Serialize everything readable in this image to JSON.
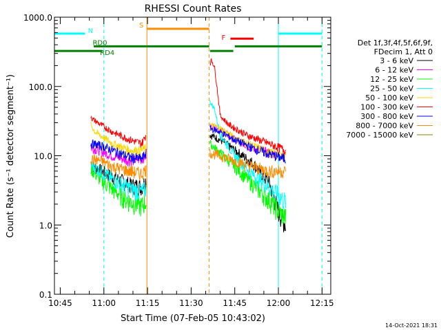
{
  "chart_data": {
    "type": "line",
    "title": "RHESSI Count Rates",
    "xlabel": "Start Time (07-Feb-05 10:43:02)",
    "ylabel": "Count Rate (s⁻¹ detector segment⁻¹)",
    "yscale": "log",
    "ylim": [
      0.1,
      1000
    ],
    "xlim_minutes": [
      0,
      95
    ],
    "x_ticks": [
      {
        "label": "10:45",
        "t": 2
      },
      {
        "label": "11:00",
        "t": 17
      },
      {
        "label": "11:15",
        "t": 32
      },
      {
        "label": "11:30",
        "t": 47
      },
      {
        "label": "11:45",
        "t": 62
      },
      {
        "label": "12:00",
        "t": 77
      },
      {
        "label": "12:15",
        "t": 92
      }
    ],
    "y_ticks": [
      {
        "label": "0.1",
        "v": 0.1
      },
      {
        "label": "1.0",
        "v": 1
      },
      {
        "label": "10.0",
        "v": 10
      },
      {
        "label": "100.0",
        "v": 100
      },
      {
        "label": "1000.0",
        "v": 1000
      }
    ],
    "legend_header": [
      "Det 1f,3f,4f,5f,6f,9f,",
      "FDecim 1, Att 0"
    ],
    "segments": [
      [
        12.5,
        31.5
      ],
      [
        53.5,
        79.5
      ]
    ],
    "series": [
      {
        "name": "3 - 6 keV",
        "color": "#000000",
        "p1": [
          [
            12.5,
            8
          ],
          [
            13.5,
            7
          ],
          [
            20,
            5
          ],
          [
            26,
            3.8
          ],
          [
            30,
            3.6
          ],
          [
            31.5,
            4.5
          ]
        ],
        "p2": [
          [
            53.5,
            20
          ],
          [
            57,
            17
          ],
          [
            62,
            12
          ],
          [
            68,
            8
          ],
          [
            74,
            4
          ],
          [
            77,
            1.6
          ],
          [
            79.5,
            1
          ]
        ]
      },
      {
        "name": "6 - 12 keV",
        "color": "#ff00ff",
        "p1": [
          [
            12.5,
            13
          ],
          [
            15,
            12
          ],
          [
            20,
            10
          ],
          [
            26,
            8.5
          ],
          [
            30,
            9
          ],
          [
            31.5,
            10
          ]
        ],
        "p2": [
          [
            53.5,
            27
          ],
          [
            57,
            24
          ],
          [
            62,
            17
          ],
          [
            68,
            13
          ],
          [
            74,
            11
          ],
          [
            79.5,
            10
          ]
        ]
      },
      {
        "name": "12 - 25 keV",
        "color": "#00ff00",
        "p1": [
          [
            12.5,
            6.5
          ],
          [
            16,
            4.5
          ],
          [
            20,
            3.3
          ],
          [
            26,
            2.2
          ],
          [
            30,
            1.9
          ],
          [
            31.5,
            2.2
          ]
        ],
        "p2": [
          [
            53.5,
            15
          ],
          [
            57,
            11
          ],
          [
            62,
            7
          ],
          [
            68,
            4
          ],
          [
            74,
            2.3
          ],
          [
            77,
            1.6
          ],
          [
            79.5,
            1.3
          ]
        ]
      },
      {
        "name": "25 - 50 keV",
        "color": "#00ffff",
        "p1": [
          [
            12.5,
            7.5
          ],
          [
            16,
            6
          ],
          [
            20,
            4.6
          ],
          [
            26,
            3.4
          ],
          [
            30,
            3.0
          ],
          [
            31.5,
            3.4
          ]
        ],
        "p2": [
          [
            53.5,
            60
          ],
          [
            55,
            48
          ],
          [
            57,
            20
          ],
          [
            62,
            10
          ],
          [
            68,
            5.5
          ],
          [
            74,
            3.5
          ],
          [
            79.5,
            2.2
          ]
        ]
      },
      {
        "name": "50 - 100 keV",
        "color": "#ffd700",
        "p1": [
          [
            12.5,
            28
          ],
          [
            14,
            22
          ],
          [
            20,
            15
          ],
          [
            26,
            12
          ],
          [
            30,
            12
          ],
          [
            31.5,
            13
          ]
        ],
        "p2": [
          [
            53.5,
            28
          ],
          [
            57,
            25
          ],
          [
            62,
            18
          ],
          [
            68,
            14
          ],
          [
            74,
            11
          ],
          [
            79.5,
            10
          ]
        ]
      },
      {
        "name": "100 - 300 keV",
        "color": "#ff0000",
        "p1": [
          [
            12.5,
            38
          ],
          [
            13,
            34
          ],
          [
            16,
            28
          ],
          [
            20,
            22
          ],
          [
            26,
            17
          ],
          [
            30,
            15
          ],
          [
            31.5,
            20
          ]
        ],
        "p2": [
          [
            53.5,
            215
          ],
          [
            54,
            240
          ],
          [
            55,
            195
          ],
          [
            56,
            90
          ],
          [
            57,
            38
          ],
          [
            60,
            28
          ],
          [
            66,
            20
          ],
          [
            72,
            16
          ],
          [
            79.5,
            12
          ]
        ]
      },
      {
        "name": "300 - 800 keV",
        "color": "#0000ff",
        "p1": [
          [
            12.5,
            15
          ],
          [
            16,
            14
          ],
          [
            20,
            12
          ],
          [
            26,
            9.5
          ],
          [
            30,
            9
          ],
          [
            31.5,
            11
          ]
        ],
        "p2": [
          [
            53.5,
            25
          ],
          [
            57,
            22
          ],
          [
            62,
            17
          ],
          [
            68,
            13
          ],
          [
            74,
            10.5
          ],
          [
            79.5,
            9
          ]
        ]
      },
      {
        "name": "800 - 7000 keV",
        "color": "#ff8c00",
        "p1": [
          [
            12.5,
            9
          ],
          [
            16,
            8.5
          ],
          [
            20,
            7
          ],
          [
            26,
            6
          ],
          [
            30,
            5.5
          ],
          [
            31.5,
            6.5
          ]
        ],
        "p2": [
          [
            53.5,
            11
          ],
          [
            57,
            10
          ],
          [
            62,
            8.5
          ],
          [
            68,
            7
          ],
          [
            74,
            6
          ],
          [
            79.5,
            6
          ]
        ]
      },
      {
        "name": "7000 - 15000 keV",
        "color": "#808000",
        "p1": [],
        "p2": []
      }
    ],
    "flag_bars": [
      {
        "label": "N",
        "color": "#00ffff",
        "segs": [
          [
            0,
            10.5
          ],
          [
            77,
            92
          ]
        ],
        "lvl": 580
      },
      {
        "label": "S",
        "color": "#ff8c00",
        "segs": [
          [
            31.8,
            53.2
          ]
        ],
        "lvl": 680
      },
      {
        "label": "F",
        "color": "#ff0000",
        "segs": [
          [
            60.5,
            68.5
          ]
        ],
        "lvl": 490
      },
      {
        "label": "RD0",
        "color": "#008000",
        "segs": [
          [
            13.5,
            53.2
          ],
          [
            62,
            92
          ]
        ],
        "lvl": 380
      },
      {
        "label": "RD4",
        "color": "#008000",
        "segs": [
          [
            0,
            16.5
          ],
          [
            53.5,
            61.5
          ]
        ],
        "lvl": 325
      }
    ],
    "vlines": [
      {
        "t": 0,
        "color": "#00ffff",
        "dash": false
      },
      {
        "t": 17,
        "color": "#00ffff",
        "dash": true
      },
      {
        "t": 31.8,
        "color": "#ff8c00",
        "dash": false
      },
      {
        "t": 53.2,
        "color": "#ff8c00",
        "dash": true
      },
      {
        "t": 77,
        "color": "#00ffff",
        "dash": false
      },
      {
        "t": 92,
        "color": "#00ffff",
        "dash": true
      }
    ],
    "footer": "14-Oct-2021 18:31"
  }
}
